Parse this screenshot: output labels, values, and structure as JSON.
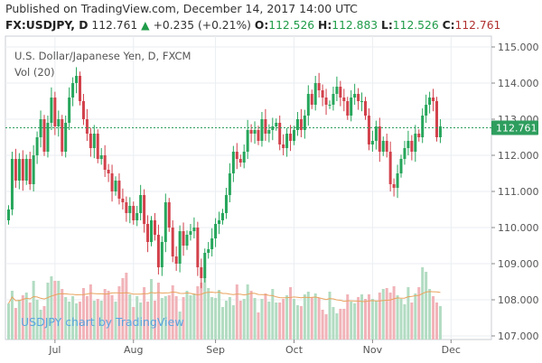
{
  "header": {
    "published": "Published on TradingView.com, December 14, 2017 14:00 UTC",
    "symbol": "FX:USDJPY, D",
    "last": "112.761",
    "change_arrow": "▲",
    "change": "+0.235 (+0.21%)",
    "open_label": "O:",
    "open": "112.526",
    "high_label": "H:",
    "high": "112.883",
    "low_label": "L:",
    "low": "112.526",
    "close_label": "C:",
    "close": "112.761"
  },
  "chart_data": {
    "type": "candlestick",
    "title": "U.S. Dollar/Japanese Yen, D, FXCM",
    "volume_label": "Vol (20)",
    "watermark": "USDJPY chart by TradingView",
    "last_price_label": "112.761",
    "last_price": 112.761,
    "ylim": [
      106.9,
      115.3
    ],
    "y_ticks": [
      "115.000",
      "114.000",
      "113.000",
      "112.000",
      "111.000",
      "110.000",
      "109.000",
      "108.000",
      "107.000"
    ],
    "y_tick_values": [
      115,
      114,
      113,
      112,
      111,
      110,
      109,
      108,
      107
    ],
    "x_ticks": [
      "Jul",
      "Aug",
      "Sep",
      "Oct",
      "Nov",
      "Dec"
    ],
    "x_tick_days": [
      0,
      22,
      45,
      67,
      89,
      111
    ],
    "start_day": -13,
    "colors": {
      "up": "#26a65b",
      "down": "#d2414b",
      "vol_up": "#b2dcc2",
      "vol_down": "#f1b3b8",
      "vol_ma": "#e9a35e",
      "last_price": "#2e9e5e",
      "grid": "#eaeef2",
      "axis_text": "#555555",
      "watermark": "#5aa5e0"
    },
    "closes": [
      110.5,
      111.9,
      111.3,
      111.9,
      111.3,
      111.9,
      111.2,
      112.0,
      112.5,
      113.0,
      112.1,
      112.9,
      113.6,
      112.8,
      113.0,
      112.1,
      112.9,
      113.6,
      114.0,
      114.2,
      113.5,
      113.0,
      112.6,
      112.2,
      112.6,
      111.9,
      112.0,
      111.6,
      111.5,
      111.0,
      111.3,
      110.8,
      110.7,
      110.4,
      110.6,
      110.2,
      110.4,
      110.9,
      110.1,
      109.6,
      110.2,
      109.8,
      108.9,
      109.6,
      110.7,
      110.0,
      109.2,
      109.0,
      109.9,
      109.5,
      109.8,
      109.9,
      110.0,
      108.9,
      108.6,
      109.3,
      109.4,
      109.7,
      110.1,
      110.2,
      110.4,
      110.9,
      111.5,
      112.1,
      111.9,
      111.8,
      112.1,
      112.7,
      112.6,
      112.7,
      112.4,
      113.0,
      112.6,
      112.7,
      112.8,
      112.9,
      112.3,
      112.2,
      112.6,
      112.4,
      112.7,
      113.0,
      112.7,
      113.1,
      113.7,
      113.4,
      114.0,
      113.8,
      113.6,
      113.4,
      113.4,
      113.7,
      113.9,
      113.6,
      113.5,
      113.1,
      113.6,
      113.7,
      113.5,
      113.5,
      113.1,
      112.3,
      112.4,
      112.8,
      112.1,
      112.4,
      112.1,
      111.2,
      111.1,
      111.5,
      111.9,
      112.2,
      112.4,
      112.1,
      112.6,
      112.5,
      113.1,
      113.4,
      113.6,
      113.5,
      112.5,
      112.8
    ],
    "volume": [
      40,
      54,
      35,
      44,
      49,
      52,
      41,
      65,
      44,
      33,
      37,
      63,
      70,
      65,
      65,
      56,
      47,
      42,
      48,
      40,
      42,
      57,
      48,
      61,
      43,
      45,
      43,
      56,
      54,
      49,
      42,
      59,
      68,
      74,
      50,
      36,
      48,
      41,
      58,
      42,
      67,
      43,
      63,
      46,
      48,
      49,
      60,
      48,
      31,
      47,
      54,
      49,
      51,
      59,
      63,
      68,
      57,
      47,
      46,
      55,
      36,
      43,
      47,
      38,
      61,
      43,
      45,
      61,
      54,
      46,
      30,
      45,
      51,
      42,
      56,
      41,
      41,
      45,
      49,
      58,
      45,
      38,
      37,
      50,
      53,
      47,
      51,
      46,
      33,
      28,
      53,
      36,
      29,
      34,
      34,
      50,
      42,
      40,
      47,
      50,
      45,
      50,
      45,
      43,
      52,
      56,
      57,
      52,
      59,
      49,
      45,
      39,
      58,
      41,
      51,
      58,
      80,
      75,
      56,
      48,
      41,
      37
    ]
  }
}
